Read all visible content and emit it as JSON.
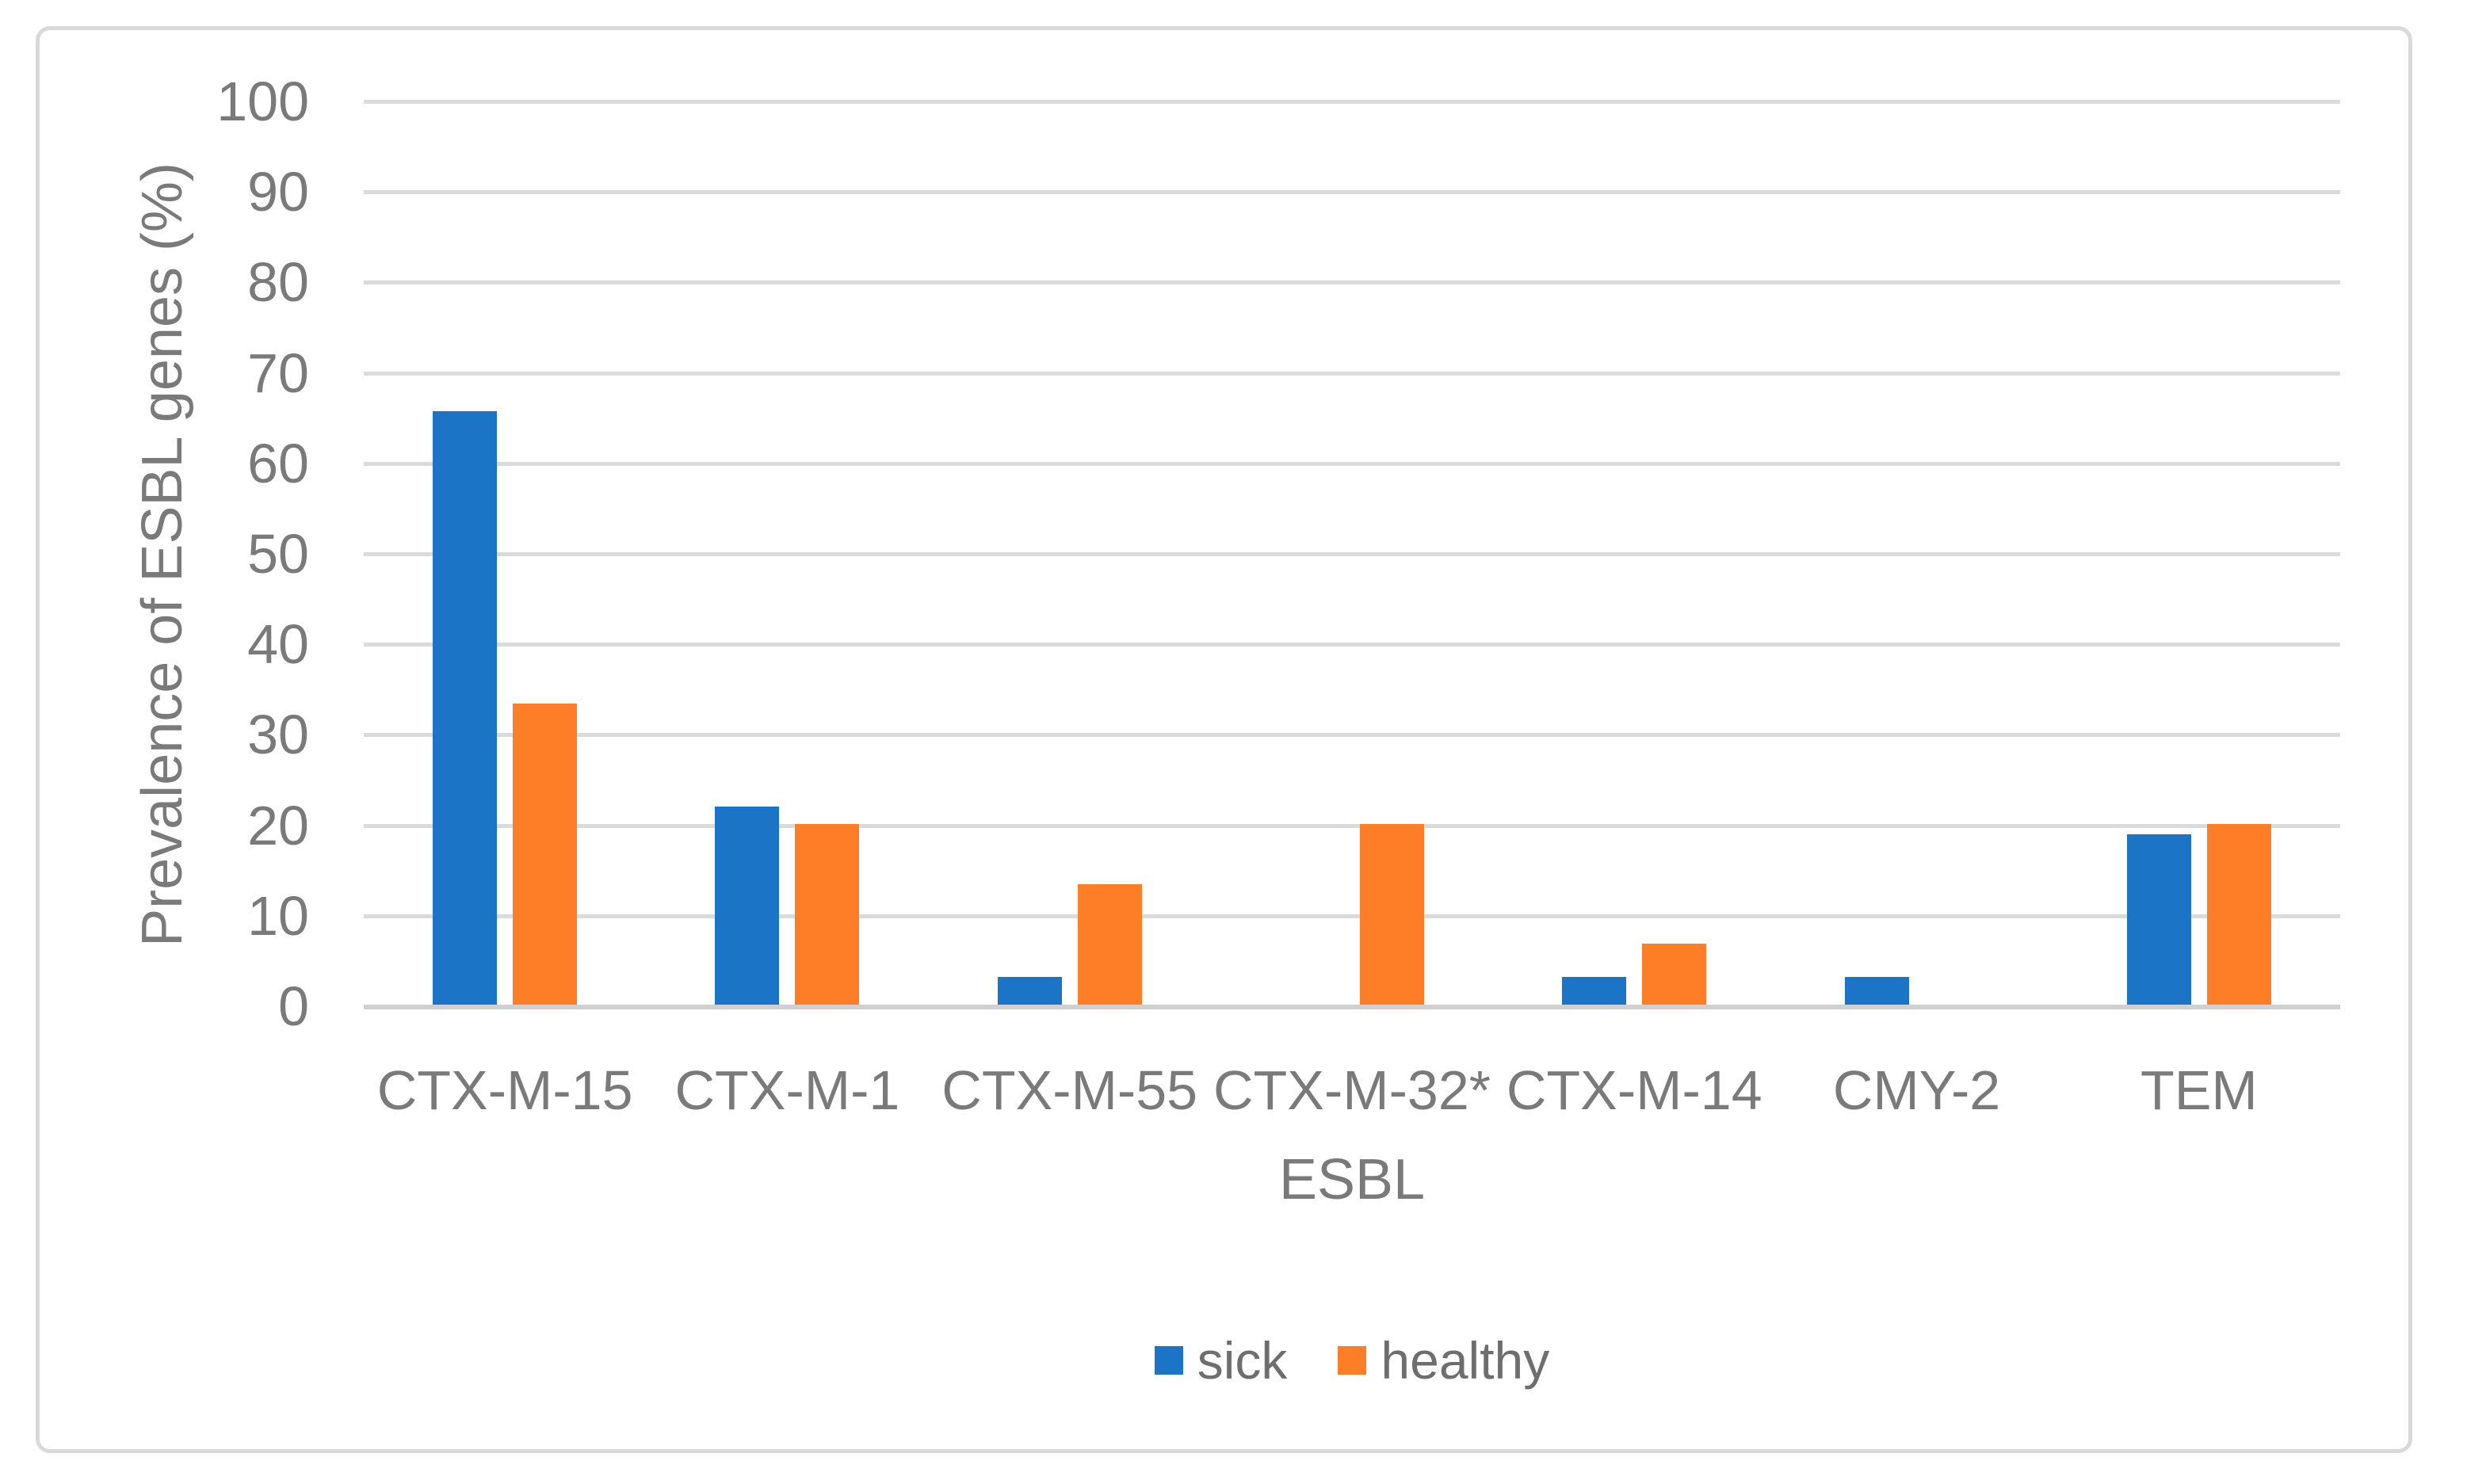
{
  "figure": {
    "background": "#FFFFFF",
    "border_color": "#D9D9D9"
  },
  "chart_data": {
    "type": "bar",
    "title": "",
    "xlabel": "ESBL",
    "ylabel": "Prevalence of ESBL genes (%)",
    "categories": [
      "CTX-M-15",
      "CTX-M-1",
      "CTX-M-55",
      "CTX-M-32*",
      "CTX-M-14",
      "CMY-2",
      "TEM"
    ],
    "series": [
      {
        "name": "sick",
        "color": "#1B74C5",
        "values": [
          65.6,
          21.9,
          3.1,
          0,
          3.1,
          3.1,
          18.8
        ]
      },
      {
        "name": "healthy",
        "color": "#FD7E26",
        "values": [
          33.3,
          20,
          13.3,
          20,
          6.7,
          0,
          20
        ]
      }
    ],
    "ylim": [
      0,
      100
    ],
    "yticks": [
      0,
      10,
      20,
      30,
      40,
      50,
      60,
      70,
      80,
      90,
      100
    ],
    "grid": true,
    "gridline_color": "#DBDBDB",
    "zero_line_color": "#D0D0D0",
    "text_color": "#7A7A7A",
    "legend_position": "bottom"
  }
}
